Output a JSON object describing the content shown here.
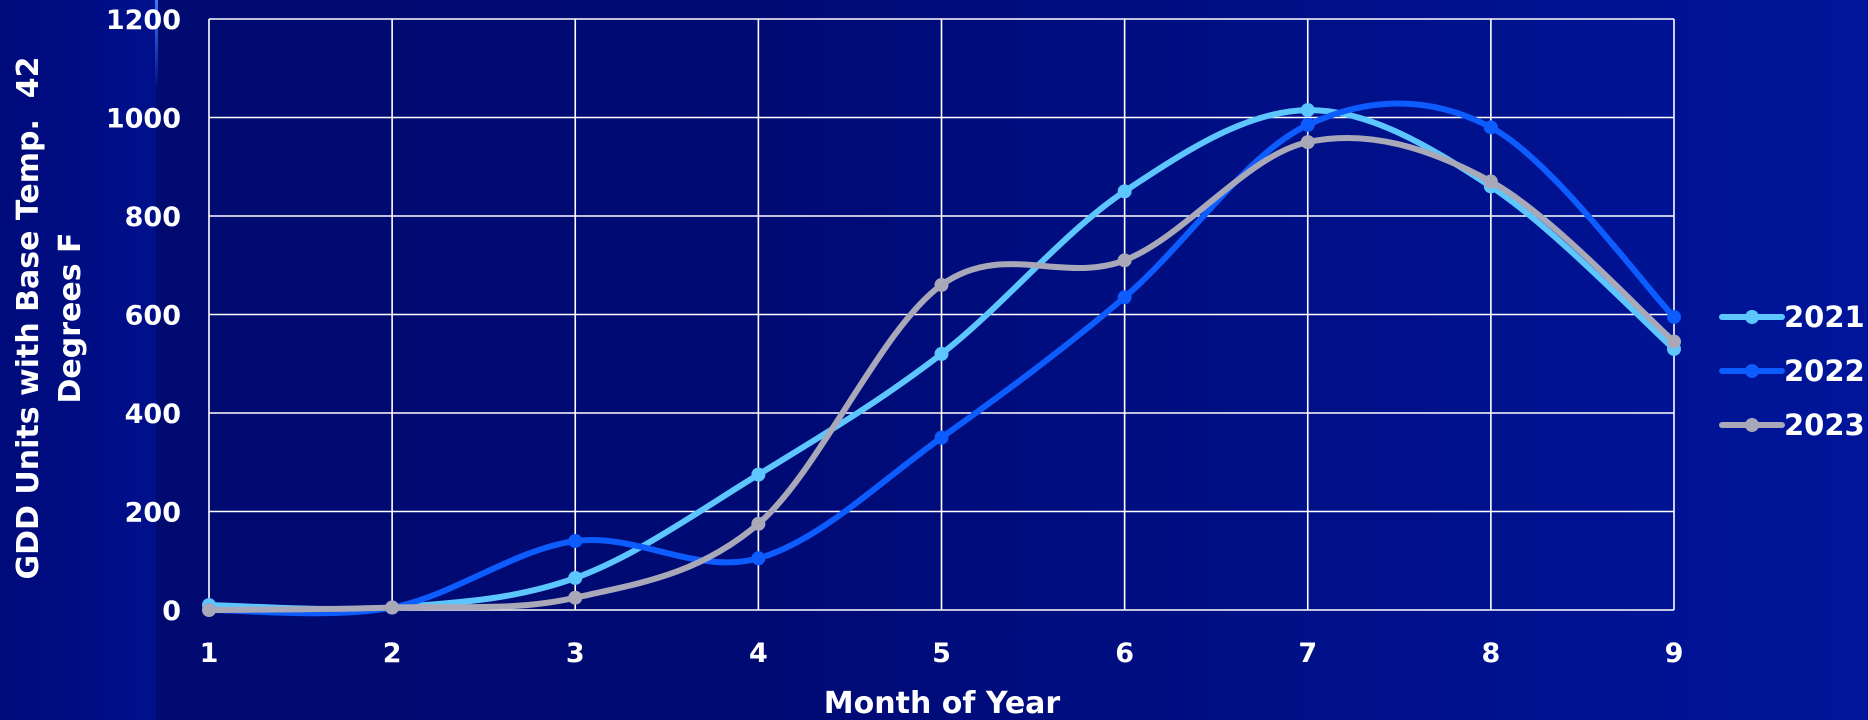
{
  "chart_data": {
    "type": "line",
    "title": "",
    "xlabel": "Month of Year",
    "ylabel_line1": "GDD Units with Base Temp.  42",
    "ylabel_line2": "Degrees F",
    "x": [
      1,
      2,
      3,
      4,
      5,
      6,
      7,
      8,
      9
    ],
    "xlim": [
      1,
      9
    ],
    "ylim": [
      0,
      1200
    ],
    "yticks": [
      0,
      200,
      400,
      600,
      800,
      1000,
      1200
    ],
    "grid": true,
    "legend_position": "right",
    "series": [
      {
        "name": "2021",
        "color": "#5ec6ff",
        "values": [
          10,
          5,
          65,
          275,
          520,
          850,
          1015,
          860,
          530
        ]
      },
      {
        "name": "2022",
        "color": "#0c5cff",
        "values": [
          0,
          5,
          140,
          105,
          350,
          635,
          985,
          980,
          595
        ]
      },
      {
        "name": "2023",
        "color": "#a8a8b8",
        "values": [
          0,
          5,
          25,
          175,
          660,
          710,
          950,
          870,
          545
        ]
      }
    ]
  },
  "colors": {
    "background": "#000a6e",
    "grid": "#ffffff",
    "text": "#ffffff"
  }
}
